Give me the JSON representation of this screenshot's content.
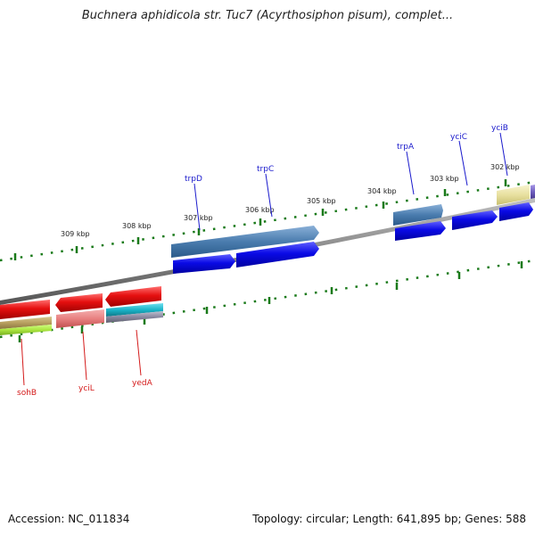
{
  "title": "Buchnera aphidicola str. Tuc7 (Acyrthosiphon pisum), complet...",
  "footer": {
    "accession": "Accession: NC_011834",
    "topology": "Topology: circular; Length: 641,895 bp; Genes: 588"
  },
  "ticks": [
    "309 kbp",
    "308 kbp",
    "307 kbp",
    "306 kbp",
    "305 kbp",
    "304 kbp",
    "303 kbp",
    "302 kbp"
  ],
  "genes_forward": [
    "trpD",
    "trpC",
    "trpA",
    "yciC",
    "yciB"
  ],
  "genes_reverse": [
    "sohB",
    "yciL",
    "yedA"
  ],
  "colors": {
    "forward_label": "#1a1acc",
    "reverse_label": "#d41a1a",
    "backbone": "#888888",
    "tick": "#1a7a1a",
    "cds_blue": "#0a0ae6",
    "steel": "#4a7cae",
    "red": "#e61010",
    "salmon": "#e88080",
    "teal": "#1ab4c8",
    "khaki": "#b8a060",
    "lime": "#aae640",
    "cream": "#e8e0a0",
    "purple": "#7060c0"
  }
}
